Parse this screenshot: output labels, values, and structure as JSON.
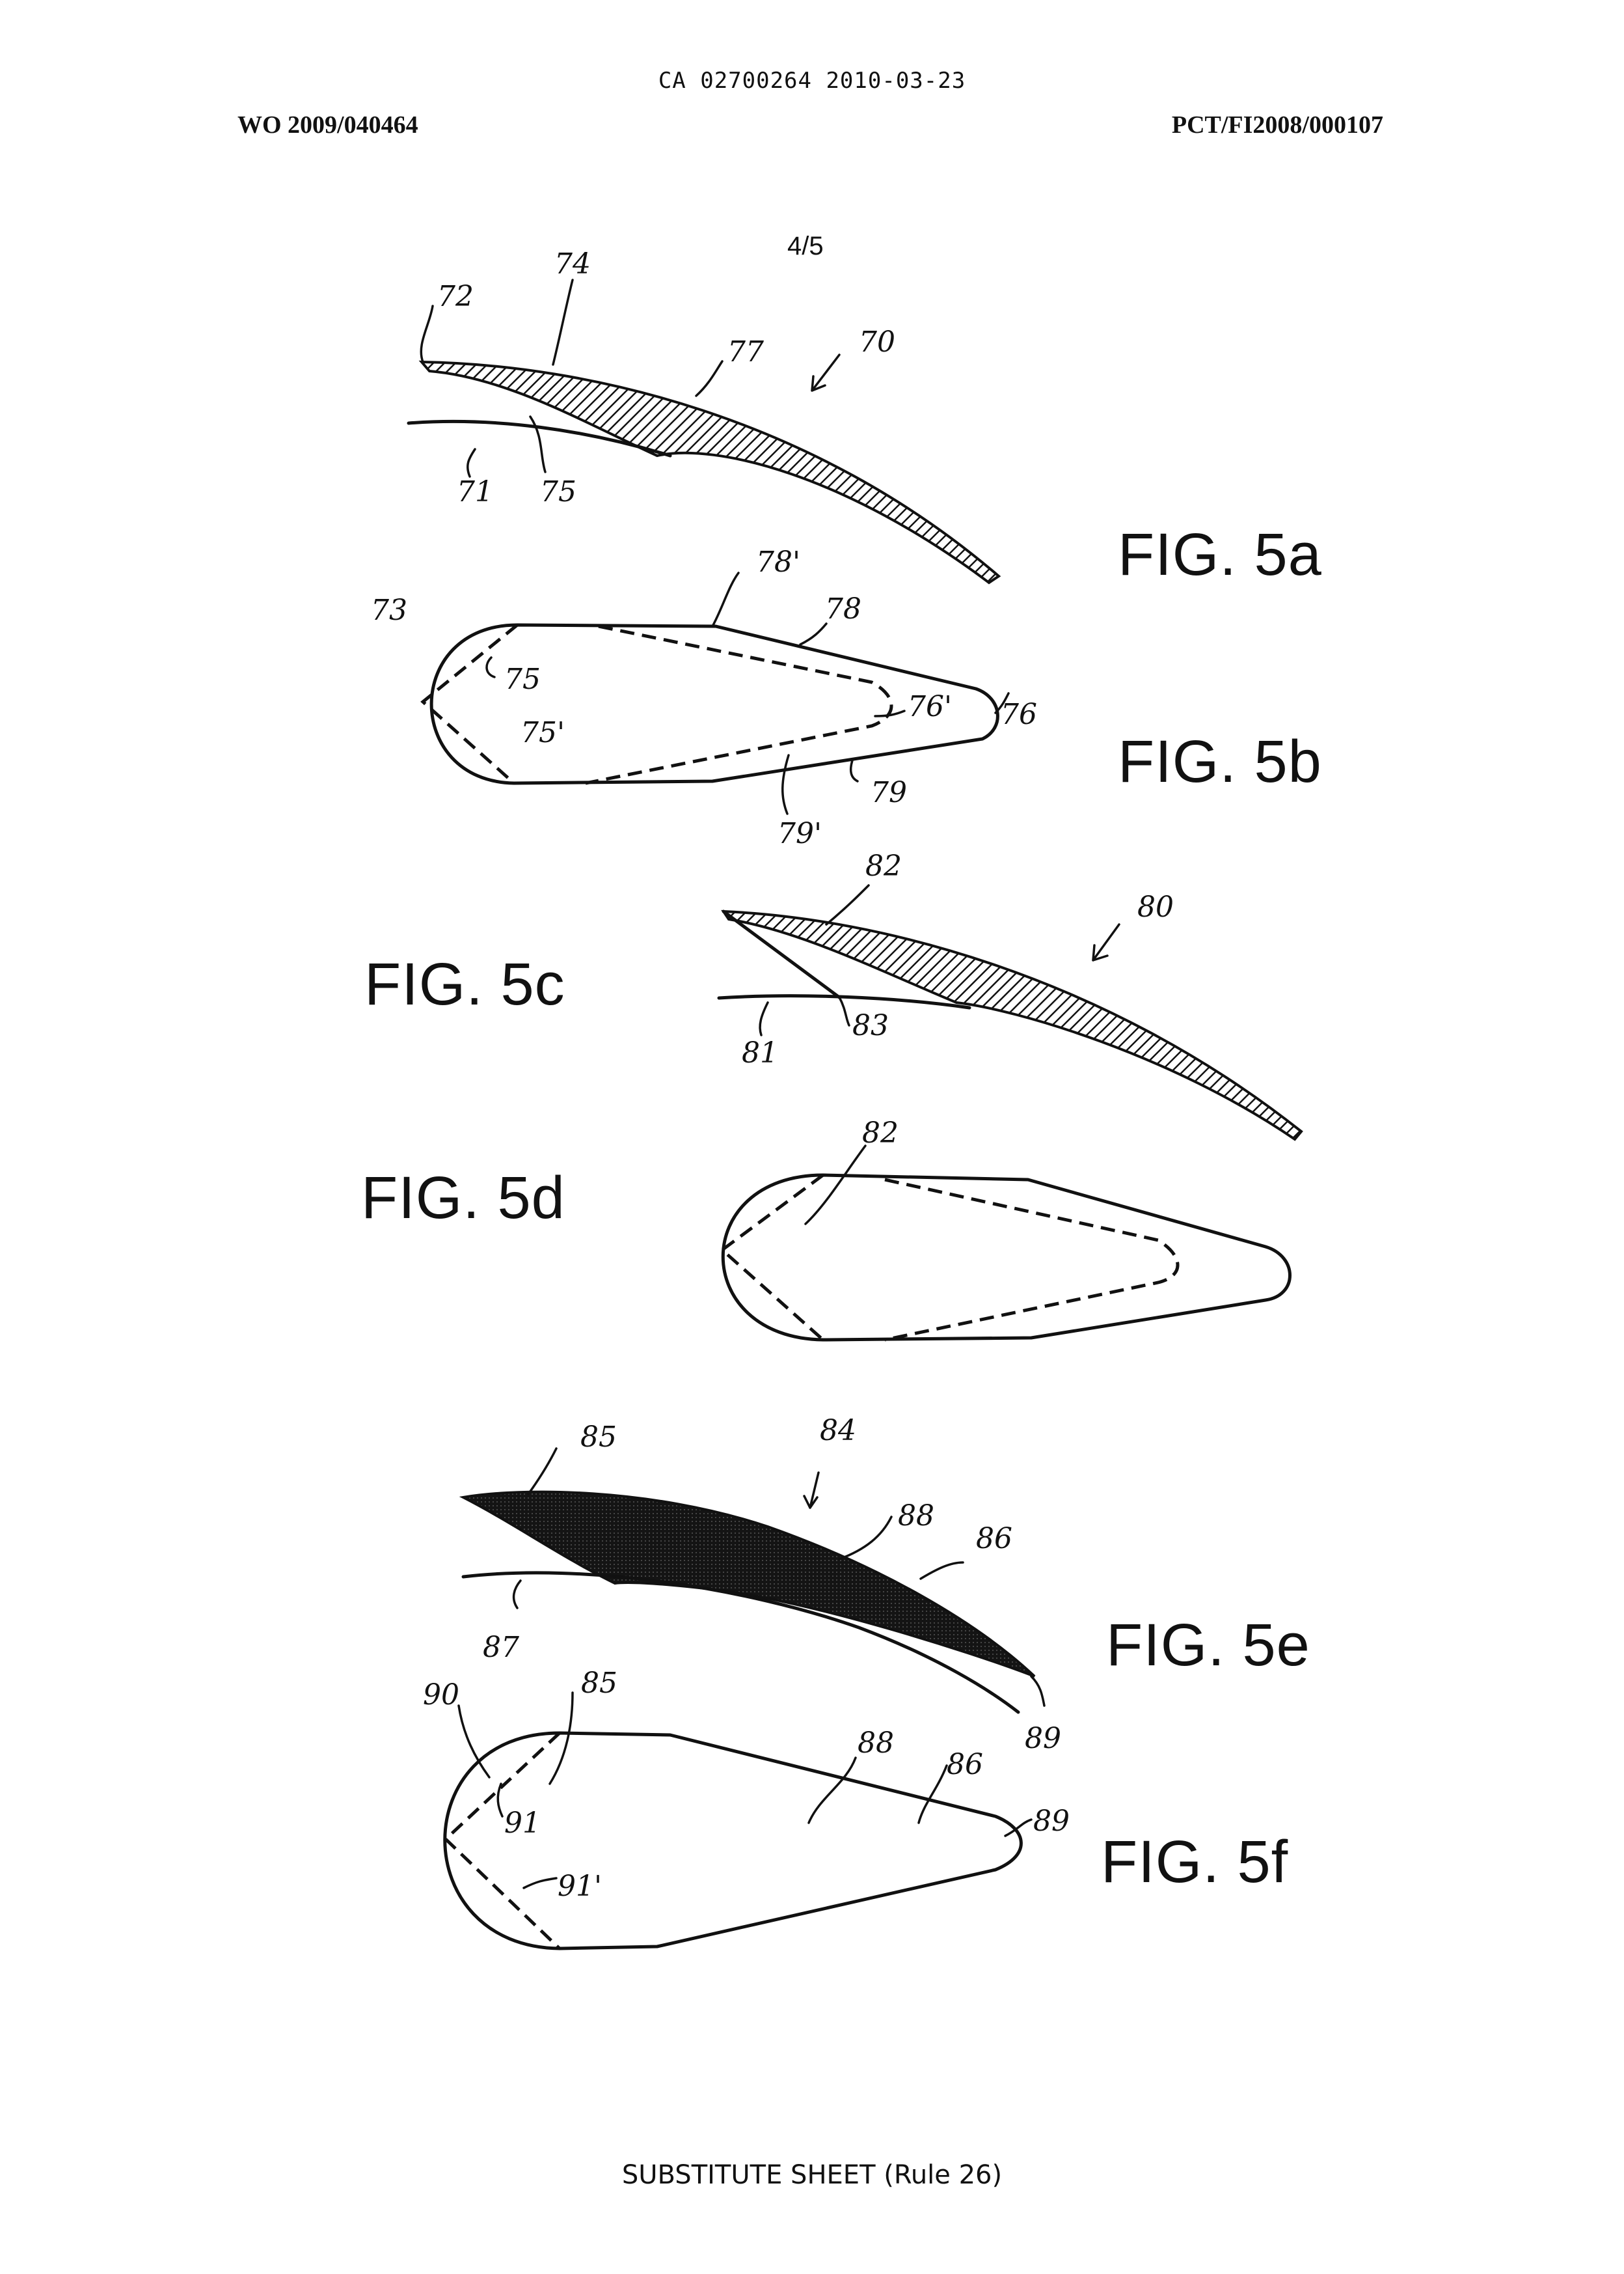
{
  "header": {
    "center": "CA 02700264 2010-03-23",
    "left": "WO 2009/040464",
    "right": "PCT/FI2008/000107"
  },
  "sheet_number": "4/5",
  "figures": {
    "fig5a": "FIG. 5a",
    "fig5b": "FIG. 5b",
    "fig5c": "FIG. 5c",
    "fig5d": "FIG. 5d",
    "fig5e": "FIG. 5e",
    "fig5f": "FIG. 5f"
  },
  "refs": {
    "r72": "72",
    "r74": "74",
    "r77": "77",
    "r70": "70",
    "r71": "71",
    "r75a": "75",
    "r73": "73",
    "r78p": "78'",
    "r78": "78",
    "r75b": "75",
    "r76p": "76'",
    "r76": "76",
    "r75p": "75'",
    "r79": "79",
    "r79p": "79'",
    "r82a": "82",
    "r80": "80",
    "r81": "81",
    "r83": "83",
    "r82b": "82",
    "r85a": "85",
    "r84": "84",
    "r88a": "88",
    "r86a": "86",
    "r87": "87",
    "r89a": "89",
    "r85b": "85",
    "r90": "90",
    "r88b": "88",
    "r86b": "86",
    "r91": "91",
    "r89b": "89",
    "r91p": "91'"
  },
  "footer": "SUBSTITUTE SHEET (Rule 26)"
}
